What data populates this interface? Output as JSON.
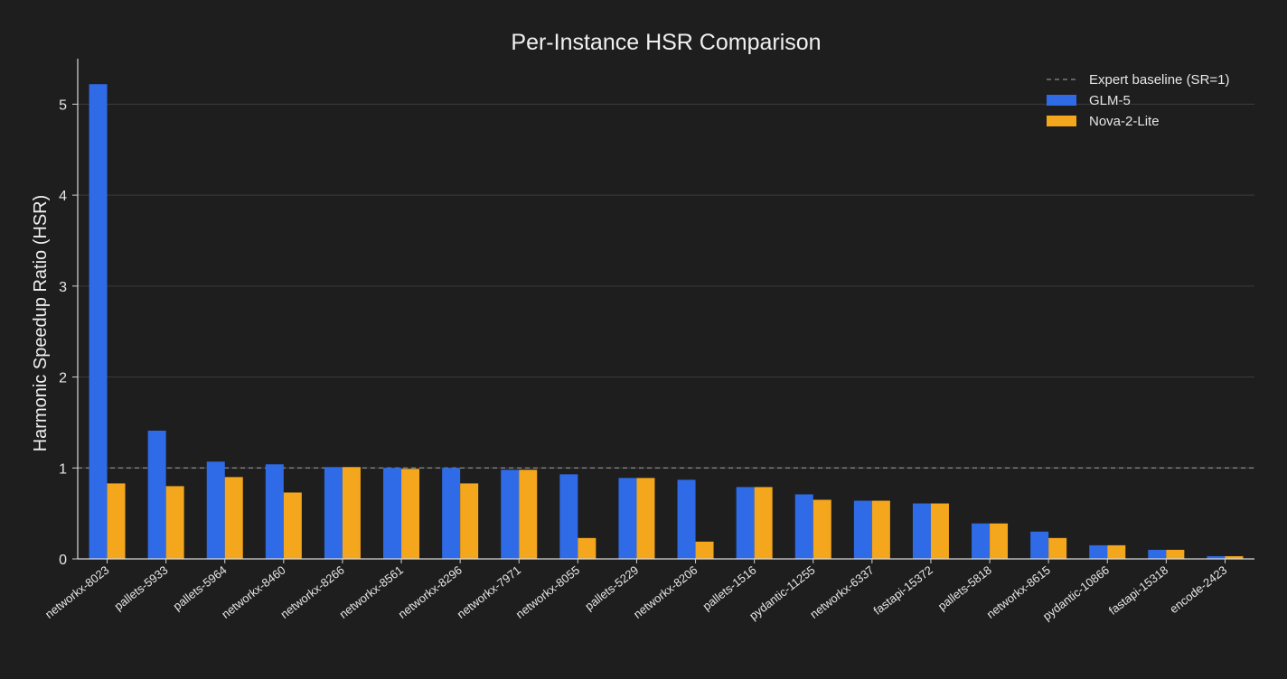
{
  "chart_data": {
    "type": "bar",
    "title": "Per-Instance HSR Comparison",
    "xlabel": "",
    "ylabel": "Harmonic Speedup Ratio (HSR)",
    "ylim": [
      0,
      5.5
    ],
    "yticks": [
      0,
      1,
      2,
      3,
      4,
      5
    ],
    "grid": true,
    "legend_position": "top-right",
    "categories": [
      "networkx-8023",
      "pallets-5933",
      "pallets-5964",
      "networkx-8460",
      "networkx-8266",
      "networkx-8561",
      "networkx-8296",
      "networkx-7971",
      "networkx-8055",
      "pallets-5229",
      "networkx-8206",
      "pallets-1516",
      "pydantic-11255",
      "networkx-6337",
      "fastapi-15372",
      "pallets-5818",
      "networkx-8615",
      "pydantic-10866",
      "fastapi-15318",
      "encode-2423"
    ],
    "series": [
      {
        "name": "GLM-5",
        "color": "#2f6be6",
        "values": [
          5.22,
          1.41,
          1.07,
          1.04,
          1.01,
          1.0,
          1.0,
          0.98,
          0.93,
          0.89,
          0.87,
          0.79,
          0.71,
          0.64,
          0.61,
          0.39,
          0.3,
          0.15,
          0.1,
          0.03
        ]
      },
      {
        "name": "Nova-2-Lite",
        "color": "#f4a61d",
        "values": [
          0.83,
          0.8,
          0.9,
          0.73,
          1.01,
          0.99,
          0.83,
          0.98,
          0.23,
          0.89,
          0.19,
          0.79,
          0.65,
          0.64,
          0.61,
          0.39,
          0.23,
          0.15,
          0.1,
          0.03
        ]
      }
    ],
    "baseline": {
      "name": "Expert baseline (SR=1)",
      "value": 1
    }
  }
}
